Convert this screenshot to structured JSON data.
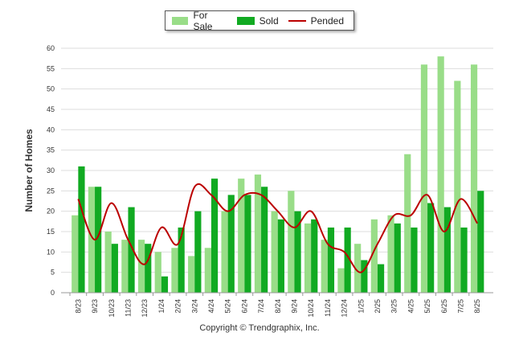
{
  "chart_data": {
    "type": "bar",
    "title": "",
    "xlabel": "",
    "ylabel": "Number of Homes",
    "ylim": [
      0,
      60
    ],
    "yticks": [
      0,
      5,
      10,
      15,
      20,
      25,
      30,
      35,
      40,
      45,
      50,
      55,
      60
    ],
    "grid": true,
    "legend_position": "top-center",
    "categories": [
      "8/23",
      "9/23",
      "10/23",
      "11/23",
      "12/23",
      "1/24",
      "2/24",
      "3/24",
      "4/24",
      "5/24",
      "6/24",
      "7/24",
      "8/24",
      "9/24",
      "10/24",
      "11/24",
      "12/24",
      "1/25",
      "2/25",
      "3/25",
      "4/25",
      "5/25",
      "6/25",
      "7/25",
      "8/25"
    ],
    "series": [
      {
        "name": "For Sale",
        "type": "bar",
        "color": "#99dd88",
        "values": [
          19,
          26,
          15,
          13,
          13,
          10,
          11,
          9,
          11,
          20,
          28,
          29,
          20,
          25,
          17,
          13,
          6,
          12,
          18,
          19,
          34,
          56,
          58,
          52,
          56
        ]
      },
      {
        "name": "Sold",
        "type": "bar",
        "color": "#11aa22",
        "values": [
          31,
          26,
          12,
          21,
          12,
          4,
          16,
          20,
          28,
          24,
          24,
          26,
          18,
          20,
          18,
          16,
          16,
          8,
          7,
          17,
          16,
          22,
          21,
          16,
          25
        ]
      },
      {
        "name": "Pended",
        "type": "line",
        "color": "#bb0000",
        "values": [
          23,
          13,
          22,
          13,
          7,
          16,
          12,
          26,
          24,
          20,
          24,
          24,
          20,
          16,
          20,
          12,
          10,
          5,
          12,
          19,
          19,
          24,
          15,
          23,
          17
        ]
      }
    ]
  },
  "footer": {
    "copyright": "Copyright © Trendgraphix, Inc."
  }
}
